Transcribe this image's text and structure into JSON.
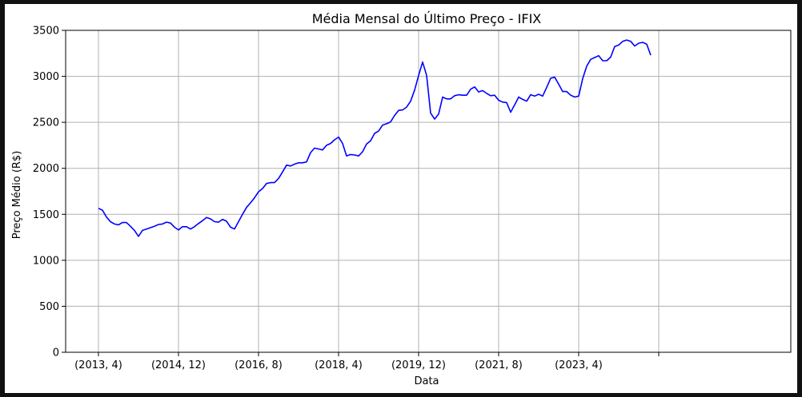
{
  "chart_data": {
    "type": "line",
    "title": "Média Mensal do Último Preço - IFIX",
    "xlabel": "Data",
    "ylabel": "Preço Médio (R$)",
    "ylim": [
      0,
      3500
    ],
    "yticks": [
      0,
      500,
      1000,
      1500,
      2000,
      2500,
      3000,
      3500
    ],
    "xticks": [
      "(2013, 4)",
      "(2014, 12)",
      "(2016, 8)",
      "(2018, 4)",
      "(2019, 12)",
      "(2021, 8)",
      "(2023, 4)",
      ""
    ],
    "grid": true,
    "colors": {
      "series": "#0000ff"
    },
    "series": [
      {
        "values": [
          1565,
          1545,
          1470,
          1420,
          1395,
          1385,
          1410,
          1410,
          1370,
          1325,
          1260,
          1325,
          1340,
          1355,
          1370,
          1390,
          1395,
          1415,
          1405,
          1360,
          1330,
          1365,
          1365,
          1340,
          1365,
          1400,
          1430,
          1465,
          1450,
          1420,
          1415,
          1445,
          1425,
          1360,
          1340,
          1420,
          1500,
          1575,
          1625,
          1680,
          1745,
          1780,
          1835,
          1845,
          1845,
          1890,
          1960,
          2035,
          2025,
          2045,
          2060,
          2060,
          2070,
          2170,
          2220,
          2210,
          2200,
          2250,
          2270,
          2310,
          2340,
          2270,
          2135,
          2150,
          2145,
          2135,
          2180,
          2265,
          2300,
          2380,
          2405,
          2470,
          2485,
          2505,
          2575,
          2630,
          2635,
          2665,
          2730,
          2850,
          3010,
          3155,
          3010,
          2600,
          2535,
          2590,
          2775,
          2755,
          2755,
          2790,
          2800,
          2795,
          2795,
          2860,
          2885,
          2830,
          2845,
          2815,
          2790,
          2795,
          2740,
          2720,
          2715,
          2610,
          2690,
          2775,
          2750,
          2730,
          2800,
          2785,
          2805,
          2785,
          2880,
          2980,
          2990,
          2915,
          2835,
          2835,
          2795,
          2775,
          2785,
          2975,
          3110,
          3185,
          3205,
          3225,
          3170,
          3170,
          3210,
          3325,
          3340,
          3380,
          3395,
          3380,
          3330,
          3360,
          3370,
          3350,
          3230
        ]
      }
    ]
  }
}
